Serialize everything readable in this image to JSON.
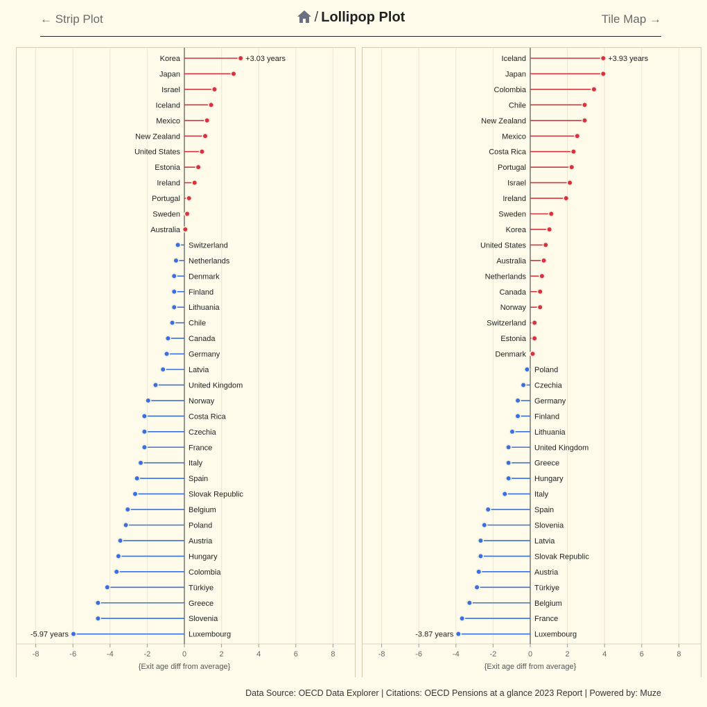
{
  "nav": {
    "prev_label": "← Strip Plot",
    "title": "Lollipop Plot",
    "separator": "/",
    "next_label": "Tile Map →",
    "home_icon": "home-icon"
  },
  "footer": {
    "text": "Data Source: OECD Data Explorer | Citations: OECD Pensions at a glance 2023 Report | Powered by: Muze"
  },
  "colors": {
    "positive": "#d9323f",
    "negative": "#3a6fe0",
    "axis": "#333333",
    "grid": "#ece7d3"
  },
  "chart_data": [
    {
      "type": "lollipop",
      "xlabel": "{Exit age diff from average}",
      "xlim": [
        -9,
        9
      ],
      "xticks": [
        -8,
        -6,
        -4,
        -2,
        0,
        2,
        4,
        6,
        8
      ],
      "value_suffix": " years",
      "categories": [
        "Korea",
        "Japan",
        "Israel",
        "Iceland",
        "Mexico",
        "New Zealand",
        "United States",
        "Estonia",
        "Ireland",
        "Portugal",
        "Sweden",
        "Australia",
        "Switzerland",
        "Netherlands",
        "Denmark",
        "Finland",
        "Lithuania",
        "Chile",
        "Canada",
        "Germany",
        "Latvia",
        "United Kingdom",
        "Norway",
        "Costa Rica",
        "Czechia",
        "France",
        "Italy",
        "Spain",
        "Slovak Republic",
        "Belgium",
        "Poland",
        "Austria",
        "Hungary",
        "Colombia",
        "Türkiye",
        "Greece",
        "Slovenia",
        "Luxembourg"
      ],
      "values": [
        3.03,
        2.65,
        1.62,
        1.44,
        1.22,
        1.12,
        0.95,
        0.75,
        0.55,
        0.25,
        0.15,
        0.05,
        -0.35,
        -0.45,
        -0.55,
        -0.55,
        -0.55,
        -0.65,
        -0.88,
        -0.95,
        -1.15,
        -1.55,
        -1.95,
        -2.15,
        -2.15,
        -2.15,
        -2.35,
        -2.55,
        -2.65,
        -3.05,
        -3.15,
        -3.45,
        -3.55,
        -3.65,
        -4.15,
        -4.65,
        -4.65,
        -5.97
      ],
      "annotations": [
        {
          "category": "Korea",
          "label": "+3.03 years"
        },
        {
          "category": "Luxembourg",
          "label": "-5.97 years"
        }
      ]
    },
    {
      "type": "lollipop",
      "xlabel": "{Exit age diff from average}",
      "xlim": [
        -9,
        9
      ],
      "xticks": [
        -8,
        -6,
        -4,
        -2,
        0,
        2,
        4,
        6,
        8
      ],
      "value_suffix": " years",
      "categories": [
        "Iceland",
        "Japan",
        "Colombia",
        "Chile",
        "New Zealand",
        "Mexico",
        "Costa Rica",
        "Portugal",
        "Israel",
        "Ireland",
        "Sweden",
        "Korea",
        "United States",
        "Australia",
        "Netherlands",
        "Canada",
        "Norway",
        "Switzerland",
        "Estonia",
        "Denmark",
        "Poland",
        "Czechia",
        "Germany",
        "Finland",
        "Lithuania",
        "United Kingdom",
        "Greece",
        "Hungary",
        "Italy",
        "Spain",
        "Slovenia",
        "Latvia",
        "Slovak Republic",
        "Austria",
        "Türkiye",
        "Belgium",
        "France",
        "Luxembourg"
      ],
      "values": [
        3.93,
        3.93,
        3.43,
        2.93,
        2.93,
        2.53,
        2.33,
        2.23,
        2.13,
        1.93,
        1.13,
        1.03,
        0.83,
        0.73,
        0.63,
        0.53,
        0.53,
        0.23,
        0.23,
        0.13,
        -0.17,
        -0.37,
        -0.67,
        -0.67,
        -0.97,
        -1.17,
        -1.17,
        -1.17,
        -1.37,
        -2.27,
        -2.47,
        -2.67,
        -2.67,
        -2.77,
        -2.87,
        -3.27,
        -3.67,
        -3.87
      ],
      "annotations": [
        {
          "category": "Iceland",
          "label": "+3.93 years"
        },
        {
          "category": "Luxembourg",
          "label": "-3.87 years"
        }
      ]
    }
  ]
}
